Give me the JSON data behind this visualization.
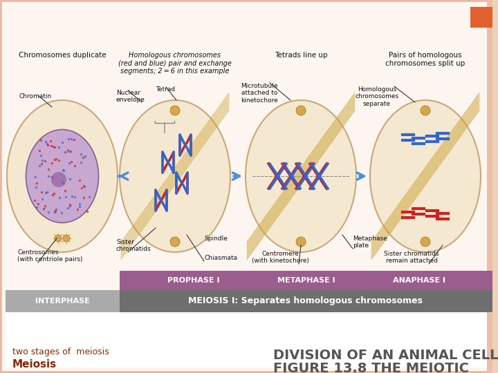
{
  "bg_color": "#fdf5f0",
  "white_area_color": "#ffffff",
  "title_left_line1": "Meiosis",
  "title_left_line2": "two stages of  meiosis",
  "title_right_line1": "FIGURE 13.8 THE MEIOTIC",
  "title_right_line2": "DIVISION OF AN ANIMAL CELL",
  "title_left_color": "#8b2500",
  "title_right_color": "#555555",
  "header_bar1_color": "#6e6e6e",
  "header_bar2_color": "#9b5d8e",
  "header_bar1_text": "MEIOSIS I: Separates homologous chromosomes",
  "header_bar1_text_color": "#ffffff",
  "interphase_text": "INTERPHASE",
  "interphase_bg": "#aaaaaa",
  "interphase_text_color": "#ffffff",
  "subheader_labels": [
    "PROPHASE I",
    "METAPHASE I",
    "ANAPHASE I"
  ],
  "subheader_text_color": "#ffffff",
  "arrow_color": "#4a90d9",
  "cell_fill": "#f5e8d0",
  "cell_edge": "#c8a878",
  "nucleus_fill": "#c8a0c8",
  "nucleus_edge": "#806090",
  "spindle_color": "#c8a030",
  "chrom_red": "#cc2222",
  "chrom_blue": "#3366cc",
  "label_fontsize": 6.5,
  "caption_fontsize": 7.0,
  "border_color": "#e8b8a0",
  "orange_box_color": "#e06030"
}
